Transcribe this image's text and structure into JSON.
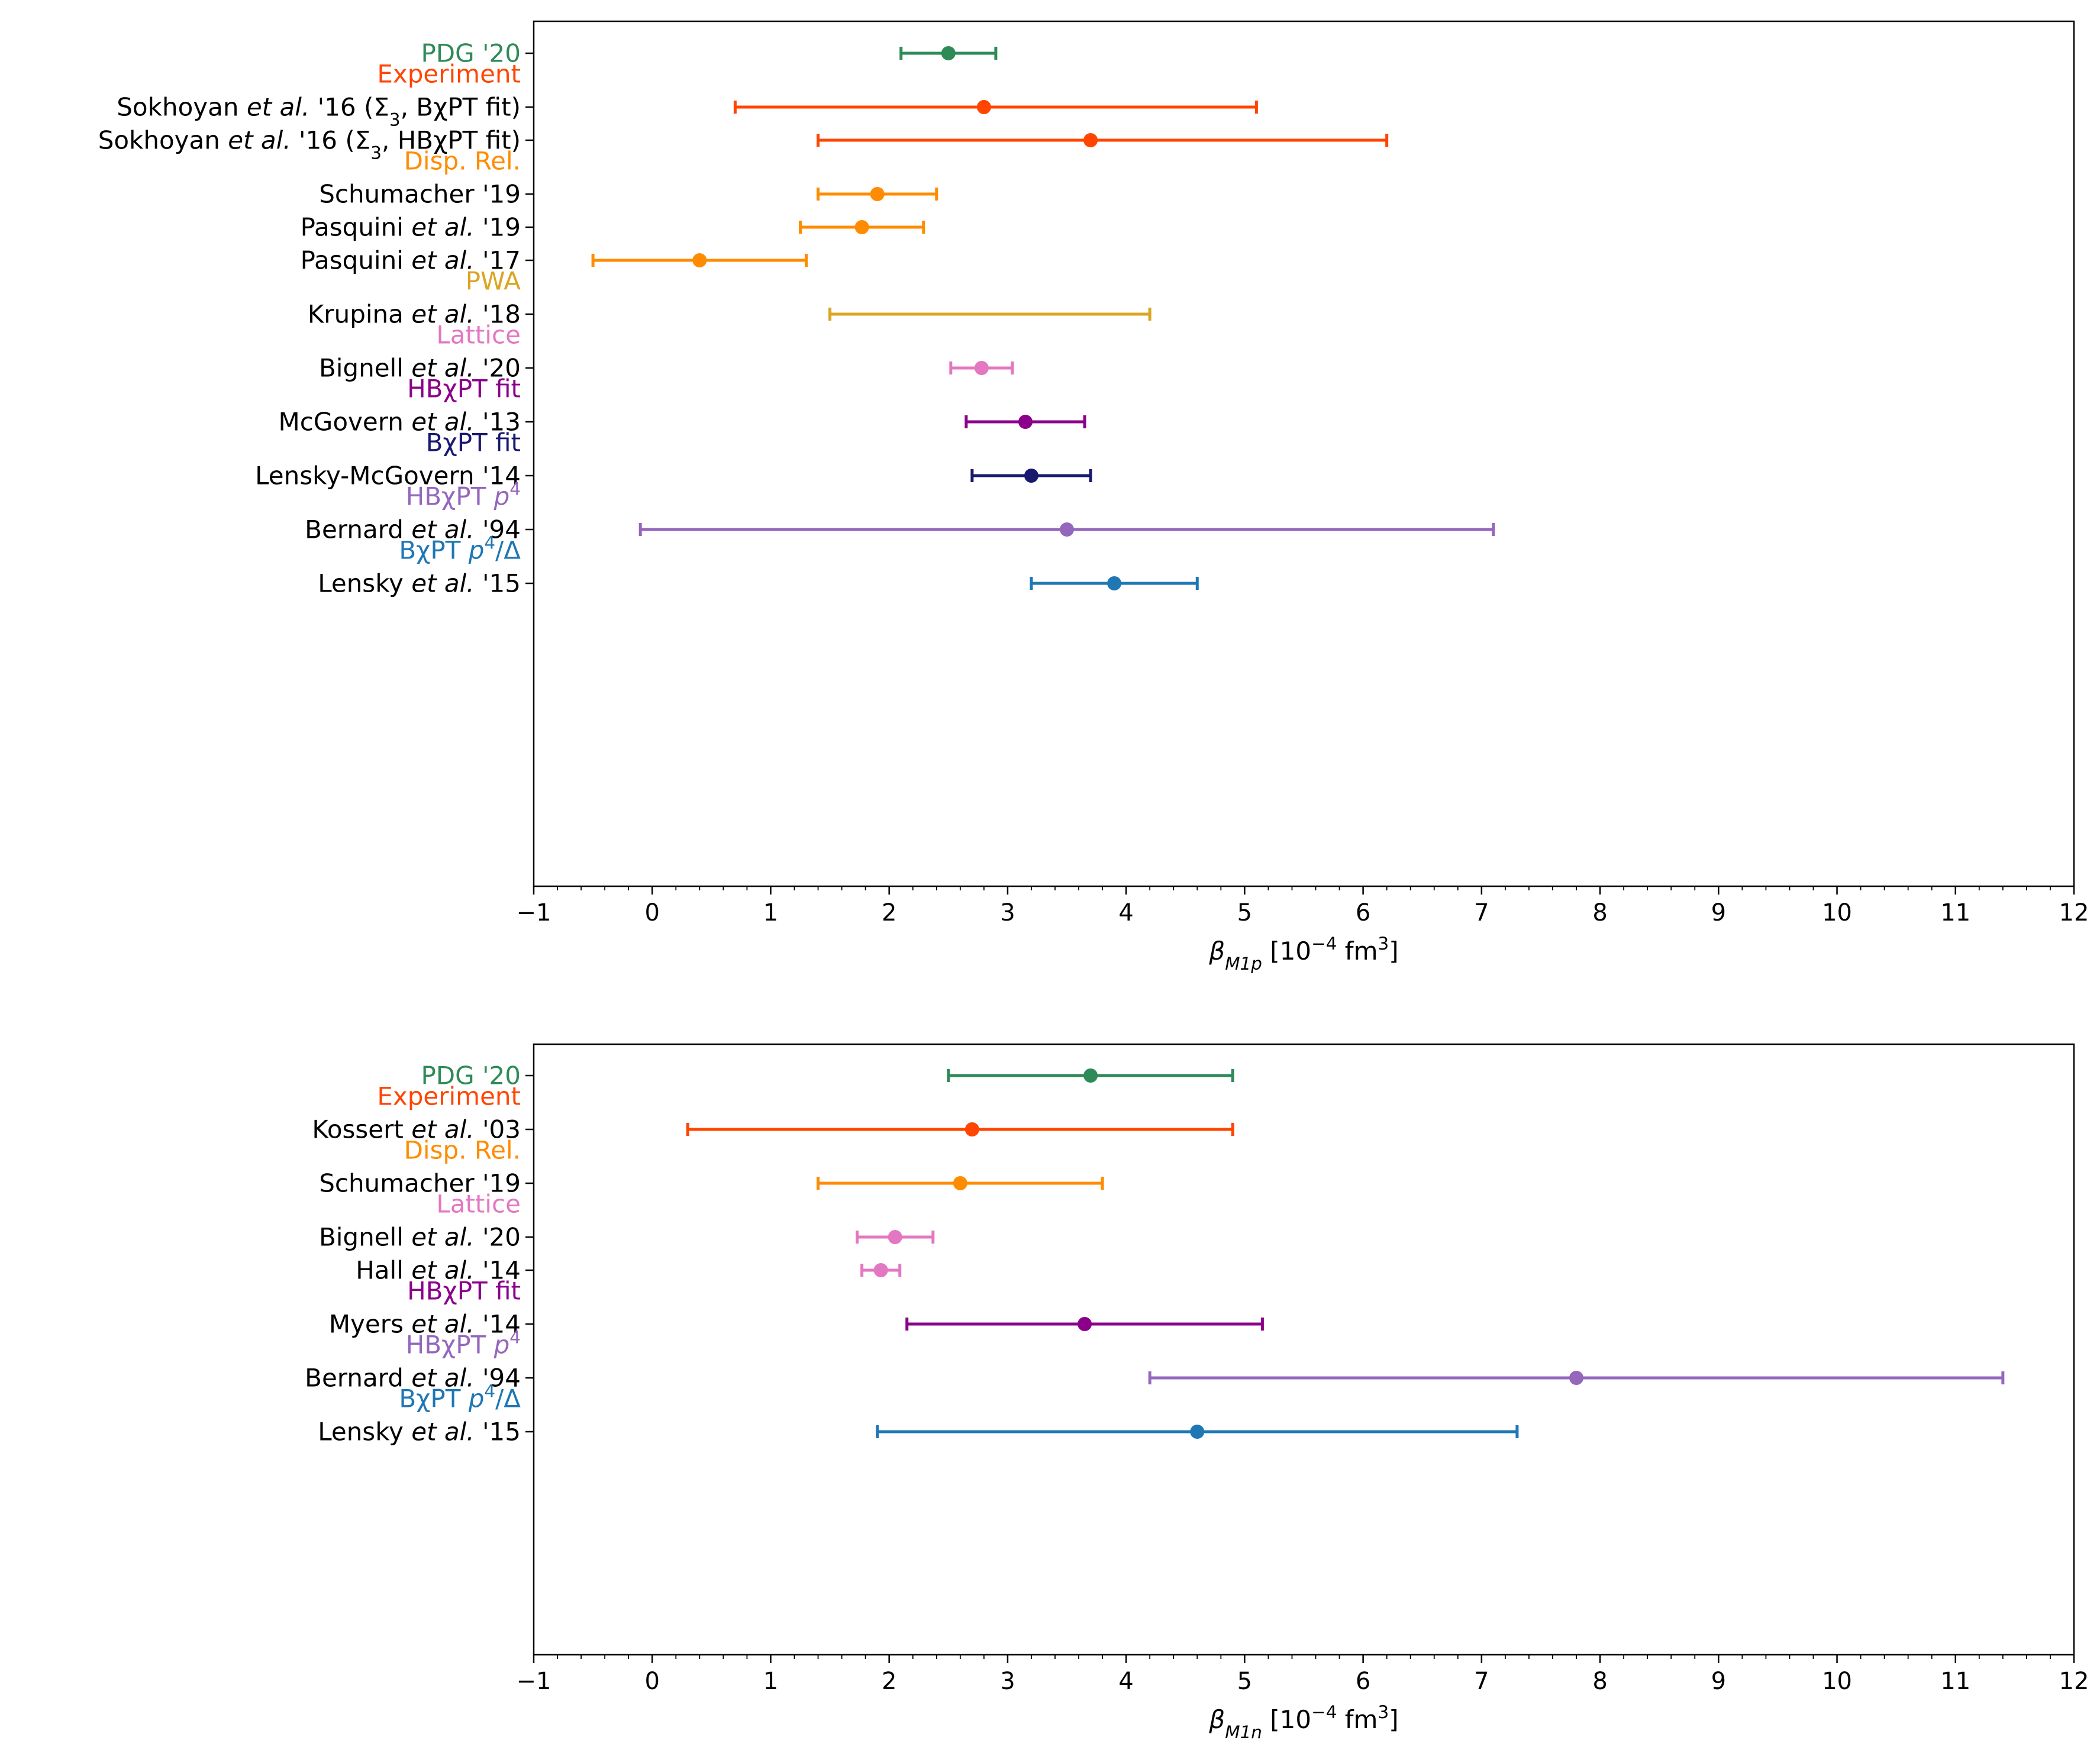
{
  "chart_data": [
    {
      "type": "errorbar",
      "panel": "proton",
      "orientation": "horizontal",
      "xlabel": "β_M1p [10^-4 fm^3]",
      "xlabel_parts": {
        "symbol": "β",
        "subscript": "M1p",
        "unit_prefix": " [10",
        "exponent": "−4",
        "unit_mid": " fm",
        "unit_exp": "3",
        "unit_suffix": "]"
      },
      "xlim": [
        -1,
        12
      ],
      "xticks": [
        -1,
        0,
        1,
        2,
        3,
        4,
        5,
        6,
        7,
        8,
        9,
        10,
        11,
        12
      ],
      "xtick_labels": [
        "−1",
        "0",
        "1",
        "2",
        "3",
        "4",
        "5",
        "6",
        "7",
        "8",
        "9",
        "10",
        "11",
        "12"
      ],
      "grid": false,
      "groups": [
        {
          "name": "PDG '20",
          "color": "#2e8b57",
          "header": false,
          "entries": [
            {
              "label": "PDG '20",
              "value": 2.5,
              "low": 2.1,
              "high": 2.9,
              "marker": true
            }
          ]
        },
        {
          "name": "Experiment",
          "color": "#ff4500",
          "header": true,
          "entries": [
            {
              "label": "Sokhoyan et al. '16 (Σ3, BχPT fit)",
              "value": 2.8,
              "low": 0.7,
              "high": 5.1,
              "marker": true
            },
            {
              "label": "Sokhoyan et al. '16 (Σ3, HBχPT fit)",
              "value": 3.7,
              "low": 1.4,
              "high": 6.2,
              "marker": true
            }
          ]
        },
        {
          "name": "Disp. Rel.",
          "color": "#ff8c00",
          "header": true,
          "entries": [
            {
              "label": "Schumacher '19",
              "value": 1.9,
              "low": 1.4,
              "high": 2.4,
              "marker": true
            },
            {
              "label": "Pasquini et al. '19",
              "value": 1.77,
              "low": 1.25,
              "high": 2.29,
              "marker": true
            },
            {
              "label": "Pasquini et al. '17",
              "value": 0.4,
              "low": -0.5,
              "high": 1.3,
              "marker": true
            }
          ]
        },
        {
          "name": "PWA",
          "color": "#daa520",
          "header": true,
          "entries": [
            {
              "label": "Krupina et al. '18",
              "value": 2.85,
              "low": 1.5,
              "high": 4.2,
              "marker": false
            }
          ]
        },
        {
          "name": "Lattice",
          "color": "#e377c2",
          "header": true,
          "entries": [
            {
              "label": "Bignell et al. '20",
              "value": 2.78,
              "low": 2.52,
              "high": 3.04,
              "marker": true
            }
          ]
        },
        {
          "name": "HBχPT fit",
          "color": "#8b008b",
          "header": true,
          "entries": [
            {
              "label": "McGovern et al. '13",
              "value": 3.15,
              "low": 2.65,
              "high": 3.65,
              "marker": true
            }
          ]
        },
        {
          "name": "BχPT fit",
          "color": "#191970",
          "header": true,
          "entries": [
            {
              "label": "Lensky-McGovern '14",
              "value": 3.2,
              "low": 2.7,
              "high": 3.7,
              "marker": true
            }
          ]
        },
        {
          "name": "HBχPT p4",
          "color": "#9467bd",
          "header": true,
          "entries": [
            {
              "label": "Bernard et al. '94",
              "value": 3.5,
              "low": -0.1,
              "high": 7.1,
              "marker": true
            }
          ]
        },
        {
          "name": "BχPT p4/Δ",
          "color": "#1f77b4",
          "header": true,
          "entries": [
            {
              "label": "Lensky et al. '15",
              "value": 3.9,
              "low": 3.2,
              "high": 4.6,
              "marker": true
            }
          ]
        }
      ]
    },
    {
      "type": "errorbar",
      "panel": "neutron",
      "orientation": "horizontal",
      "xlabel": "β_M1n [10^-4 fm^3]",
      "xlabel_parts": {
        "symbol": "β",
        "subscript": "M1n",
        "unit_prefix": " [10",
        "exponent": "−4",
        "unit_mid": " fm",
        "unit_exp": "3",
        "unit_suffix": "]"
      },
      "xlim": [
        -1,
        12
      ],
      "xticks": [
        -1,
        0,
        1,
        2,
        3,
        4,
        5,
        6,
        7,
        8,
        9,
        10,
        11,
        12
      ],
      "xtick_labels": [
        "−1",
        "0",
        "1",
        "2",
        "3",
        "4",
        "5",
        "6",
        "7",
        "8",
        "9",
        "10",
        "11",
        "12"
      ],
      "grid": false,
      "groups": [
        {
          "name": "PDG '20",
          "color": "#2e8b57",
          "header": false,
          "entries": [
            {
              "label": "PDG '20",
              "value": 3.7,
              "low": 2.5,
              "high": 4.9,
              "marker": true
            }
          ]
        },
        {
          "name": "Experiment",
          "color": "#ff4500",
          "header": true,
          "entries": [
            {
              "label": "Kossert et al. '03",
              "value": 2.7,
              "low": 0.3,
              "high": 4.9,
              "marker": true
            }
          ]
        },
        {
          "name": "Disp. Rel.",
          "color": "#ff8c00",
          "header": true,
          "entries": [
            {
              "label": "Schumacher '19",
              "value": 2.6,
              "low": 1.4,
              "high": 3.8,
              "marker": true
            }
          ]
        },
        {
          "name": "Lattice",
          "color": "#e377c2",
          "header": true,
          "entries": [
            {
              "label": "Bignell et al. '20",
              "value": 2.05,
              "low": 1.73,
              "high": 2.37,
              "marker": true
            },
            {
              "label": "Hall et al. '14",
              "value": 1.93,
              "low": 1.77,
              "high": 2.09,
              "marker": true
            }
          ]
        },
        {
          "name": "HBχPT fit",
          "color": "#8b008b",
          "header": true,
          "entries": [
            {
              "label": "Myers et al. '14",
              "value": 3.65,
              "low": 2.15,
              "high": 5.15,
              "marker": true
            }
          ]
        },
        {
          "name": "HBχPT p4",
          "color": "#9467bd",
          "header": true,
          "entries": [
            {
              "label": "Bernard et al. '94",
              "value": 7.8,
              "low": 4.2,
              "high": 11.4,
              "marker": true
            }
          ]
        },
        {
          "name": "BχPT p4/Δ",
          "color": "#1f77b4",
          "header": true,
          "entries": [
            {
              "label": "Lensky et al. '15",
              "value": 4.6,
              "low": 1.9,
              "high": 7.3,
              "marker": true
            }
          ]
        }
      ]
    }
  ]
}
